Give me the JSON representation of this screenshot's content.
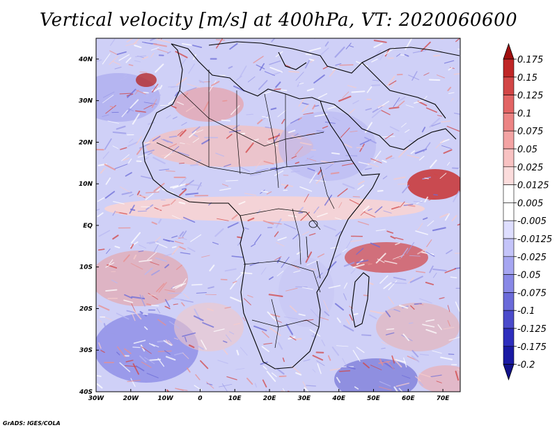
{
  "title": "Vertical velocity [m/s] at 400hPa, VT: 2020060600",
  "credit": "GrADS: IGES/COLA",
  "map": {
    "lon_ticks": [
      "30W",
      "20W",
      "10W",
      "0",
      "10E",
      "20E",
      "30E",
      "40E",
      "50E",
      "60E",
      "70E"
    ],
    "lat_ticks": [
      "40N",
      "30N",
      "20N",
      "10N",
      "EQ",
      "10S",
      "20S",
      "30S",
      "40S"
    ],
    "lon_range": [
      -30,
      75
    ],
    "lat_range": [
      -40,
      45
    ],
    "field": "vertical velocity, 400 hPa"
  },
  "colorbar": {
    "labels": [
      "0.175",
      "0.15",
      "0.125",
      "0.1",
      "0.075",
      "0.05",
      "0.025",
      "0.0125",
      "0.005",
      "-0.005",
      "-0.0125",
      "-0.025",
      "-0.05",
      "-0.075",
      "-0.1",
      "-0.125",
      "-0.175",
      "-0.2"
    ],
    "colors": [
      "#a00f0f",
      "#bf2626",
      "#d24646",
      "#e26464",
      "#ec8484",
      "#f3a3a3",
      "#f8c2c2",
      "#fbdcdc",
      "#ffffff",
      "#ffffff",
      "#dedeff",
      "#c4c4f9",
      "#a6a6f1",
      "#8888e6",
      "#6a6ad9",
      "#4b4bcb",
      "#2e2ebd",
      "#1a1aa3",
      "#12128a"
    ]
  },
  "colors": {
    "red": "#d24646",
    "blue": "#4b4bcb",
    "coast": "#000000"
  }
}
